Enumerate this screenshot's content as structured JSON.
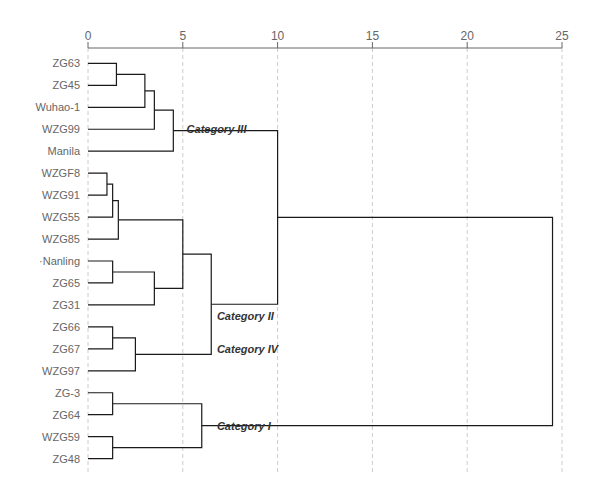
{
  "chart_data": {
    "type": "dendrogram",
    "categories": [
      "ZG63",
      "ZG45",
      "Wuhao-1",
      "WZG99",
      "Manila",
      "WZGF8",
      "WZG91",
      "WZG55",
      "WZG85",
      "·Nanling",
      "ZG65",
      "ZG31",
      "ZG66",
      "ZG67",
      "WZG97",
      "ZG-3",
      "ZG64",
      "WZG59",
      "ZG48"
    ],
    "xlim": [
      0,
      25
    ],
    "xticks": [
      0,
      5,
      10,
      15,
      20,
      25
    ],
    "grid": true,
    "color": "#1a1a1a",
    "tree": {
      "height": 24.5,
      "children": [
        {
          "height": 10,
          "children": [
            {
              "height": 4.5,
              "children": [
                {
                  "height": 3.5,
                  "children": [
                    {
                      "height": 3,
                      "children": [
                        {
                          "height": 1.5,
                          "children": [
                            "ZG63",
                            "ZG45"
                          ]
                        },
                        "Wuhao-1"
                      ]
                    },
                    "WZG99"
                  ]
                },
                "Manila"
              ]
            },
            {
              "height": 6.5,
              "children": [
                {
                  "height": 5,
                  "children": [
                    {
                      "height": 1.6,
                      "children": [
                        {
                          "height": 1.3,
                          "children": [
                            {
                              "height": 1,
                              "children": [
                                "WZGF8",
                                "WZG91"
                              ]
                            },
                            "WZG55"
                          ]
                        },
                        "WZG85"
                      ]
                    },
                    {
                      "height": 3.5,
                      "children": [
                        {
                          "height": 1.3,
                          "children": [
                            "·Nanling",
                            "ZG65"
                          ]
                        },
                        "ZG31"
                      ]
                    }
                  ]
                },
                {
                  "height": 2.5,
                  "children": [
                    {
                      "height": 1.3,
                      "children": [
                        "ZG66",
                        "ZG67"
                      ]
                    },
                    "WZG97"
                  ]
                }
              ]
            }
          ]
        },
        {
          "height": 6,
          "children": [
            {
              "height": 1.3,
              "children": [
                "ZG-3",
                "ZG64"
              ]
            },
            {
              "height": 1.3,
              "children": [
                "WZG59",
                "ZG48"
              ]
            }
          ]
        }
      ]
    },
    "annotations": [
      {
        "text": "Category III",
        "x": 5.2,
        "between": [
          "Wuhao-1",
          "Manila"
        ]
      },
      {
        "text": "Category II",
        "x": 6.8,
        "between": [
          "ZG31",
          "ZG66"
        ]
      },
      {
        "text": "Category IV",
        "x": 6.8,
        "between": [
          "ZG66",
          "WZG97"
        ]
      },
      {
        "text": "Category I",
        "x": 6.8,
        "between": [
          "ZG64",
          "WZG59"
        ]
      }
    ]
  }
}
